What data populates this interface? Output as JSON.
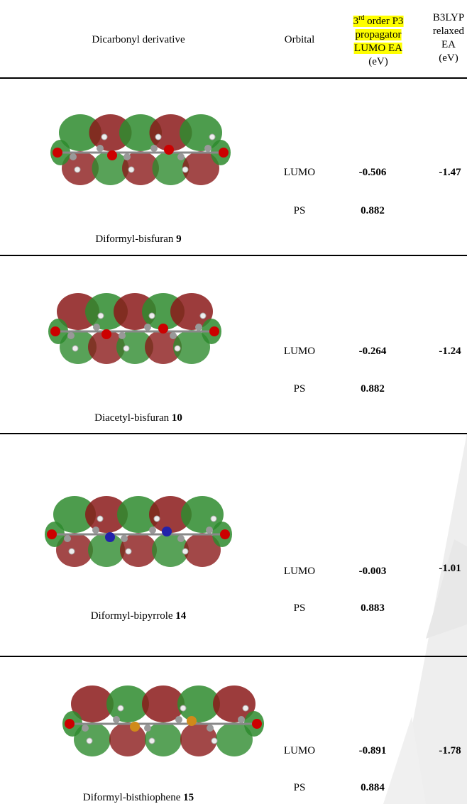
{
  "table": {
    "header": {
      "derivative": "Dicarbonyl derivative",
      "orbital": "Orbital",
      "ea": {
        "num": "3",
        "sup": "rd",
        "lines": [
          "order P3",
          "propagator",
          "LUMO EA"
        ],
        "unit": "(eV)"
      },
      "b3lyp": {
        "lines": [
          "B3LYP",
          "relaxed",
          "EA"
        ],
        "unit": "(eV)"
      }
    },
    "rows": [
      {
        "name": "Diformyl-bisfuran",
        "number": "9",
        "lumo_label": "LUMO",
        "lumo_ea": -0.506,
        "b3lyp": -1.47,
        "ps_label": "PS",
        "ps_value": 0.882
      },
      {
        "name": "Diacetyl-bisfuran",
        "number": "10",
        "lumo_label": "LUMO",
        "lumo_ea": -0.264,
        "b3lyp": -1.24,
        "ps_label": "PS",
        "ps_value": 0.882
      },
      {
        "name": "Diformyl-bipyrrole",
        "number": "14",
        "lumo_label": "LUMO",
        "lumo_ea": -0.003,
        "b3lyp": -1.01,
        "ps_label": "PS",
        "ps_value": 0.883
      },
      {
        "name": "Diformyl-bisthiophene",
        "number": "15",
        "lumo_label": "LUMO",
        "lumo_ea": -0.891,
        "b3lyp": -1.78,
        "ps_label": "PS",
        "ps_value": 0.884
      }
    ]
  }
}
